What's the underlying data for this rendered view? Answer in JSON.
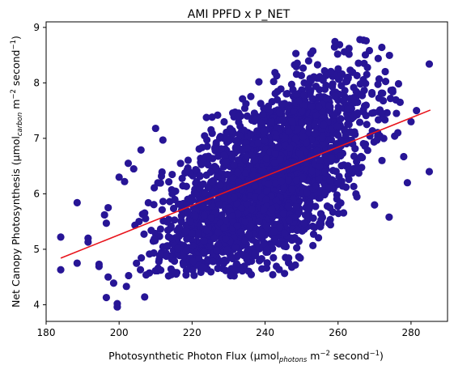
{
  "chart_data": {
    "type": "scatter",
    "title": "AMI PPFD x P_NET",
    "xlabel": {
      "prefix": "Photosynthetic Photon Flux (µmol",
      "subscript": "photons",
      "middle": " m",
      "superscript_1": "−2",
      "middle_2": " second",
      "superscript_2": "−1",
      "suffix": ")"
    },
    "ylabel": {
      "prefix": "Net Canopy Photosynthesis (µmol",
      "subscript": "carbon",
      "middle": " m",
      "superscript_1": "−2",
      "middle_2": " second",
      "superscript_2": "−1",
      "suffix": ")"
    },
    "xlim": [
      180,
      290
    ],
    "ylim": [
      3.7,
      9.1
    ],
    "xticks": [
      180,
      200,
      220,
      240,
      260,
      280
    ],
    "yticks": [
      4,
      5,
      6,
      7,
      8,
      9
    ],
    "grid": false,
    "legend": "none",
    "point_color": "#271596",
    "line_color": "#e8141c",
    "trend_line": {
      "x": [
        184,
        285.3
      ],
      "y": [
        4.84,
        7.51
      ]
    },
    "point_cloud": {
      "description_note": "",
      "center_x": 240,
      "center_y": 6.2,
      "sd_x": 14,
      "sd_y": 0.95,
      "correlation": 0.62,
      "x_range": [
        200,
        282
      ],
      "y_range": [
        4.5,
        8.8
      ]
    },
    "outliers": [
      {
        "x": 184,
        "y": 5.22
      },
      {
        "x": 184,
        "y": 4.63
      },
      {
        "x": 188.5,
        "y": 5.84
      },
      {
        "x": 188.5,
        "y": 4.75
      },
      {
        "x": 191.5,
        "y": 5.2
      },
      {
        "x": 191.5,
        "y": 5.13
      },
      {
        "x": 194.5,
        "y": 4.73
      },
      {
        "x": 194.5,
        "y": 4.69
      },
      {
        "x": 196,
        "y": 5.62
      },
      {
        "x": 196.5,
        "y": 5.47
      },
      {
        "x": 196.5,
        "y": 4.13
      },
      {
        "x": 197,
        "y": 4.5
      },
      {
        "x": 197,
        "y": 5.75
      },
      {
        "x": 198.5,
        "y": 4.39
      },
      {
        "x": 199.5,
        "y": 3.96
      },
      {
        "x": 199.5,
        "y": 4.02
      },
      {
        "x": 200,
        "y": 6.3
      },
      {
        "x": 201.5,
        "y": 6.22
      },
      {
        "x": 202.5,
        "y": 6.55
      },
      {
        "x": 202,
        "y": 4.33
      },
      {
        "x": 204,
        "y": 6.45
      },
      {
        "x": 206,
        "y": 6.79
      },
      {
        "x": 207,
        "y": 4.14
      },
      {
        "x": 210,
        "y": 7.18
      },
      {
        "x": 212,
        "y": 6.97
      },
      {
        "x": 263,
        "y": 8.62
      },
      {
        "x": 266,
        "y": 8.78
      },
      {
        "x": 267,
        "y": 8.77
      },
      {
        "x": 271,
        "y": 8.44
      },
      {
        "x": 272,
        "y": 8.64
      },
      {
        "x": 275,
        "y": 7.84
      },
      {
        "x": 276,
        "y": 7.45
      },
      {
        "x": 277,
        "y": 7.65
      },
      {
        "x": 278,
        "y": 6.67
      },
      {
        "x": 280,
        "y": 7.3
      },
      {
        "x": 281.5,
        "y": 7.5
      },
      {
        "x": 285,
        "y": 8.34
      },
      {
        "x": 285,
        "y": 6.4
      },
      {
        "x": 274,
        "y": 5.58
      },
      {
        "x": 279,
        "y": 6.2
      },
      {
        "x": 270,
        "y": 5.8
      }
    ]
  }
}
